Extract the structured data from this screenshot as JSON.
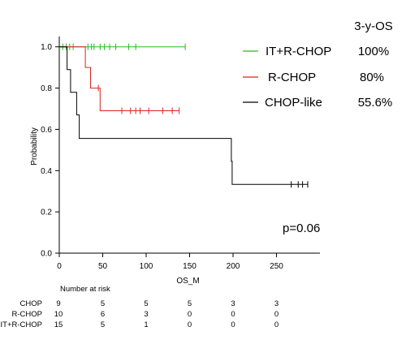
{
  "chart_data": {
    "type": "line",
    "subtype": "kaplan-meier-step",
    "title": "",
    "xlabel": "OS_M",
    "ylabel": "Probability",
    "xlim": [
      0,
      300
    ],
    "ylim": [
      0,
      1.05
    ],
    "xticks": [
      0,
      50,
      100,
      150,
      200,
      250
    ],
    "yticks": [
      0.0,
      0.2,
      0.4,
      0.6,
      0.8,
      1.0
    ],
    "ytick_labels": [
      "0.0",
      "0.2",
      "0.4",
      "0.6",
      "0.8",
      "1.0"
    ],
    "grid": false,
    "legend": {
      "placement": "top-right",
      "header": "3-y-OS"
    },
    "series": [
      {
        "name": "IT+R-CHOP",
        "color": "#22bb22",
        "summary": "100%",
        "steps": [
          [
            0,
            1.0
          ],
          [
            145,
            1.0
          ]
        ],
        "censors": [
          [
            4,
            1.0
          ],
          [
            8,
            1.0
          ],
          [
            12,
            1.0
          ],
          [
            16,
            1.0
          ],
          [
            33,
            1.0
          ],
          [
            37,
            1.0
          ],
          [
            40,
            1.0
          ],
          [
            47,
            1.0
          ],
          [
            52,
            1.0
          ],
          [
            58,
            1.0
          ],
          [
            65,
            1.0
          ],
          [
            80,
            1.0
          ],
          [
            88,
            1.0
          ],
          [
            145,
            1.0
          ]
        ]
      },
      {
        "name": "R-CHOP",
        "color": "#dd2222",
        "summary": "80%",
        "steps": [
          [
            0,
            1.0
          ],
          [
            30,
            1.0
          ],
          [
            30,
            0.9
          ],
          [
            36,
            0.9
          ],
          [
            36,
            0.8
          ],
          [
            47,
            0.8
          ],
          [
            47,
            0.69
          ],
          [
            138,
            0.69
          ]
        ],
        "censors": [
          [
            45,
            0.8
          ],
          [
            72,
            0.69
          ],
          [
            82,
            0.69
          ],
          [
            88,
            0.69
          ],
          [
            93,
            0.69
          ],
          [
            103,
            0.69
          ],
          [
            119,
            0.69
          ],
          [
            130,
            0.69
          ],
          [
            138,
            0.69
          ]
        ]
      },
      {
        "name": "CHOP-like",
        "color": "#000000",
        "summary": "55.6%",
        "steps": [
          [
            0,
            1.0
          ],
          [
            9,
            1.0
          ],
          [
            9,
            0.89
          ],
          [
            13,
            0.89
          ],
          [
            13,
            0.78
          ],
          [
            20,
            0.78
          ],
          [
            20,
            0.67
          ],
          [
            23,
            0.67
          ],
          [
            23,
            0.556
          ],
          [
            198,
            0.556
          ],
          [
            198,
            0.445
          ],
          [
            199,
            0.445
          ],
          [
            199,
            0.333
          ],
          [
            286,
            0.333
          ]
        ],
        "censors": [
          [
            267,
            0.333
          ],
          [
            275,
            0.333
          ],
          [
            280,
            0.333
          ],
          [
            286,
            0.333
          ]
        ]
      }
    ],
    "annotation": "p=0.06",
    "risk_table": {
      "title": "Number at risk",
      "times": [
        0,
        50,
        100,
        150,
        200,
        250
      ],
      "rows": [
        {
          "label": "CHOP",
          "values": [
            9,
            5,
            5,
            5,
            3,
            3
          ]
        },
        {
          "label": "R-CHOP",
          "values": [
            10,
            6,
            3,
            0,
            0,
            0
          ]
        },
        {
          "label": "IT+R-CHOP",
          "values": [
            15,
            5,
            1,
            0,
            0,
            0
          ]
        }
      ]
    }
  }
}
